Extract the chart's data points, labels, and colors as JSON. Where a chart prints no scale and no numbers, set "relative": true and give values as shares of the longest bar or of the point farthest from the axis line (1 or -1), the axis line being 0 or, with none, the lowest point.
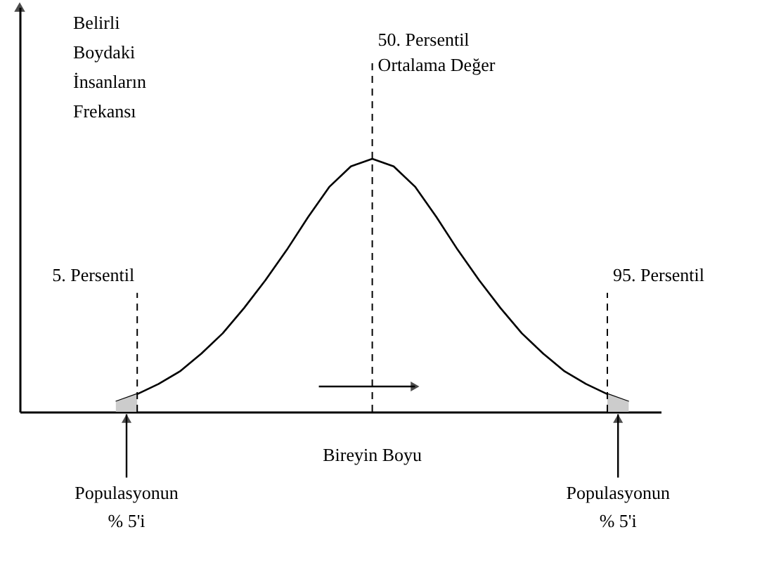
{
  "chart_data": {
    "type": "line",
    "relative": true,
    "xlabel": "Bireyin Boyu",
    "ylabel": "Belirli\nBoydaki\nİnsanların\nFrekansı",
    "categories": [
      null,
      null,
      null,
      null,
      null,
      null,
      null,
      null,
      null,
      null,
      null,
      null,
      null,
      null,
      null,
      null,
      null,
      null,
      null,
      null,
      null,
      null,
      null,
      null,
      null
    ],
    "color": "#000000",
    "values": [
      0.04,
      0.07,
      0.11,
      0.16,
      0.23,
      0.31,
      0.41,
      0.52,
      0.64,
      0.77,
      0.89,
      0.97,
      1.0,
      0.97,
      0.89,
      0.77,
      0.64,
      0.52,
      0.41,
      0.31,
      0.23,
      0.16,
      0.11,
      0.07,
      0.04
    ],
    "annotations": [
      "5. Persentil",
      "50. Persentil\nOrtalama Değer",
      "95. Persentil",
      "Populasyonun\n% 5'i",
      "Populasyonun\n% 5'i"
    ]
  }
}
